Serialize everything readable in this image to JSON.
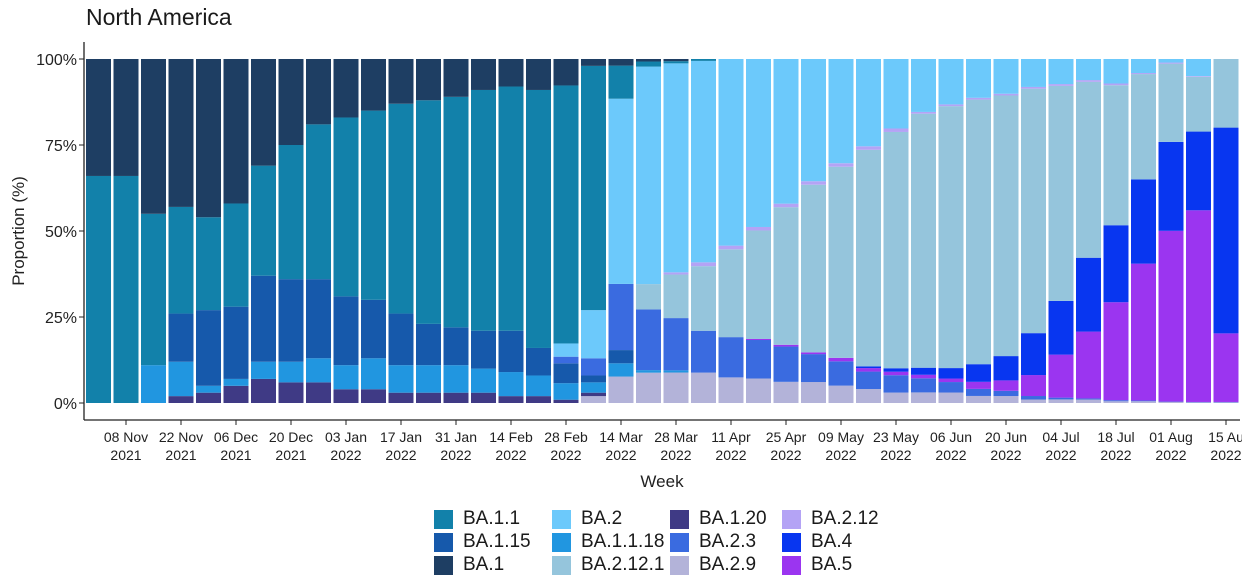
{
  "chart_data": {
    "type": "bar",
    "stacked": true,
    "title": "North America",
    "xlabel": "Week",
    "ylabel": "Proportion (%)",
    "ylim": [
      0,
      100
    ],
    "yticks": [
      "0%",
      "25%",
      "50%",
      "75%",
      "100%"
    ],
    "categories": [
      "01 Nov 2021",
      "08 Nov 2021",
      "15 Nov 2021",
      "22 Nov 2021",
      "29 Nov 2021",
      "06 Dec 2021",
      "13 Dec 2021",
      "20 Dec 2021",
      "27 Dec 2021",
      "03 Jan 2022",
      "10 Jan 2022",
      "17 Jan 2022",
      "24 Jan 2022",
      "31 Jan 2022",
      "07 Feb 2022",
      "14 Feb 2022",
      "21 Feb 2022",
      "28 Feb 2022",
      "07 Mar 2022",
      "14 Mar 2022",
      "21 Mar 2022",
      "28 Mar 2022",
      "04 Apr 2022",
      "11 Apr 2022",
      "18 Apr 2022",
      "25 Apr 2022",
      "02 May 2022",
      "09 May 2022",
      "16 May 2022",
      "23 May 2022",
      "30 May 2022",
      "06 Jun 2022",
      "13 Jun 2022",
      "20 Jun 2022",
      "27 Jun 2022",
      "04 Jul 2022",
      "11 Jul 2022",
      "18 Jul 2022",
      "25 Jul 2022",
      "01 Aug 2022",
      "08 Aug 2022",
      "15 Aug 2022"
    ],
    "xticks": [
      {
        "index": 1,
        "line1": "08 Nov",
        "line2": "2021"
      },
      {
        "index": 3,
        "line1": "22 Nov",
        "line2": "2021"
      },
      {
        "index": 5,
        "line1": "06 Dec",
        "line2": "2021"
      },
      {
        "index": 7,
        "line1": "20 Dec",
        "line2": "2021"
      },
      {
        "index": 9,
        "line1": "03 Jan",
        "line2": "2022"
      },
      {
        "index": 11,
        "line1": "17 Jan",
        "line2": "2022"
      },
      {
        "index": 13,
        "line1": "31 Jan",
        "line2": "2022"
      },
      {
        "index": 15,
        "line1": "14 Feb",
        "line2": "2022"
      },
      {
        "index": 17,
        "line1": "28 Feb",
        "line2": "2022"
      },
      {
        "index": 19,
        "line1": "14 Mar",
        "line2": "2022"
      },
      {
        "index": 21,
        "line1": "28 Mar",
        "line2": "2022"
      },
      {
        "index": 23,
        "line1": "11 Apr",
        "line2": "2022"
      },
      {
        "index": 25,
        "line1": "25 Apr",
        "line2": "2022"
      },
      {
        "index": 27,
        "line1": "09 May",
        "line2": "2022"
      },
      {
        "index": 29,
        "line1": "23 May",
        "line2": "2022"
      },
      {
        "index": 31,
        "line1": "06 Jun",
        "line2": "2022"
      },
      {
        "index": 33,
        "line1": "20 Jun",
        "line2": "2022"
      },
      {
        "index": 35,
        "line1": "04 Jul",
        "line2": "2022"
      },
      {
        "index": 37,
        "line1": "18 Jul",
        "line2": "2022"
      },
      {
        "index": 39,
        "line1": "01 Aug",
        "line2": "2022"
      },
      {
        "index": 41,
        "line1": "15 Au",
        "line2": "2022"
      }
    ],
    "series": [
      {
        "name": "BA.2.9",
        "color": "#b3b3d9",
        "values": [
          0,
          0,
          0,
          0,
          0,
          0,
          0,
          0,
          0,
          0,
          0,
          0,
          0,
          0,
          0,
          0,
          0,
          0,
          2,
          4,
          6,
          7,
          8,
          7,
          7,
          6,
          6,
          5,
          4,
          3,
          3,
          3,
          2,
          2,
          1,
          1,
          1,
          0.5,
          0.5,
          0.3,
          0.2,
          0.2
        ]
      },
      {
        "name": "BA.1.20",
        "color": "#3f3a85",
        "values": [
          0,
          0,
          0,
          2,
          3,
          5,
          7,
          6,
          6,
          4,
          4,
          3,
          3,
          3,
          3,
          2,
          2,
          1,
          1,
          0,
          0,
          0,
          0,
          0,
          0,
          0,
          0,
          0,
          0,
          0,
          0,
          0,
          0,
          0,
          0,
          0,
          0,
          0,
          0,
          0,
          0,
          0
        ]
      },
      {
        "name": "BA.1.1.18",
        "color": "#2196e0",
        "values": [
          0,
          0,
          11,
          10,
          2,
          2,
          5,
          6,
          7,
          7,
          9,
          8,
          8,
          8,
          7,
          7,
          6,
          5,
          3,
          2,
          0.5,
          0.5,
          0,
          0,
          0,
          0,
          0,
          0,
          0,
          0,
          0,
          0,
          0,
          0,
          0,
          0,
          0,
          0,
          0,
          0,
          0,
          0
        ]
      },
      {
        "name": "BA.1.15",
        "color": "#1659ab",
        "values": [
          0,
          0,
          0,
          14,
          22,
          21,
          25,
          24,
          23,
          20,
          17,
          15,
          12,
          11,
          11,
          12,
          8,
          6,
          2,
          2,
          0,
          0,
          0,
          0,
          0,
          0,
          0,
          0,
          0,
          0,
          0,
          0,
          0,
          0,
          0,
          0,
          0,
          0,
          0,
          0,
          0,
          0
        ]
      },
      {
        "name": "BA.2.3",
        "color": "#3a6be0",
        "values": [
          0,
          0,
          0,
          0,
          0,
          0,
          0,
          0,
          0,
          0,
          0,
          0,
          0,
          0,
          0,
          0,
          0,
          2,
          5,
          10,
          12,
          12,
          11,
          11,
          11,
          10,
          8,
          7,
          5,
          5,
          4,
          3,
          2,
          1.5,
          1,
          0.5,
          0.3,
          0.3,
          0.2,
          0.1,
          0.1,
          0.1
        ]
      },
      {
        "name": "BA.5",
        "color": "#9b35f0",
        "values": [
          0,
          0,
          0,
          0,
          0,
          0,
          0,
          0,
          0,
          0,
          0,
          0,
          0,
          0,
          0,
          0,
          0,
          0,
          0,
          0,
          0,
          0,
          0,
          0,
          0.3,
          0.5,
          0.5,
          1,
          1,
          1,
          1,
          1,
          2,
          3,
          6,
          12,
          19,
          28,
          39,
          48,
          56,
          20
        ]
      },
      {
        "name": "BA.4",
        "color": "#0836f0",
        "values": [
          0,
          0,
          0,
          0,
          0,
          0,
          0,
          0,
          0,
          0,
          0,
          0,
          0,
          0,
          0,
          0,
          0,
          0,
          0,
          0,
          0,
          0,
          0,
          0,
          0,
          0,
          0,
          0,
          0.5,
          1,
          2,
          3,
          5,
          7,
          12,
          15,
          21,
          22,
          24,
          25,
          23,
          60
        ]
      },
      {
        "name": "BA.2.12.1",
        "color": "#95c5dc",
        "values": [
          0,
          0,
          0,
          0,
          0,
          0,
          0,
          0,
          0,
          0,
          0,
          0,
          0,
          0,
          0,
          0,
          0,
          0,
          0,
          0,
          5,
          10,
          17,
          24,
          31,
          39,
          48,
          55,
          62,
          68,
          72,
          75,
          75,
          75,
          70,
          60,
          50,
          40,
          30,
          22,
          16,
          20
        ]
      },
      {
        "name": "BA.2.12",
        "color": "#b4a3f5",
        "values": [
          0,
          0,
          0,
          0,
          0,
          0,
          0,
          0,
          0,
          0,
          0,
          0,
          0,
          0,
          0,
          0,
          0,
          0,
          0,
          0,
          0,
          0.5,
          1,
          1,
          1,
          1,
          1,
          1,
          1,
          1,
          0.5,
          0.5,
          0.5,
          0.5,
          0.5,
          0.5,
          0.5,
          0.5,
          0.3,
          0.3,
          0.2,
          0
        ]
      },
      {
        "name": "BA.2",
        "color": "#6cc9fb",
        "values": [
          0,
          0,
          0,
          0,
          0,
          0,
          0,
          0,
          0,
          0,
          0,
          0,
          0,
          0,
          0,
          0,
          0,
          4,
          14,
          28,
          43,
          48,
          53,
          51,
          48,
          41,
          35,
          30,
          25,
          20,
          15,
          13,
          11,
          10,
          8,
          7,
          6,
          7,
          4,
          1,
          5,
          0
        ]
      },
      {
        "name": "BA.1.1",
        "color": "#1281aa",
        "values": [
          66,
          66,
          44,
          31,
          27,
          30,
          32,
          39,
          45,
          52,
          55,
          61,
          65,
          67,
          70,
          71,
          75,
          78,
          71,
          5,
          1,
          0.5,
          0.5,
          0,
          0,
          0,
          0,
          0,
          0,
          0,
          0,
          0,
          0,
          0,
          0,
          0,
          0,
          0,
          0,
          0,
          0,
          0
        ]
      },
      {
        "name": "BA.1",
        "color": "#1e3e63",
        "values": [
          34,
          34,
          45,
          43,
          46,
          42,
          31,
          25,
          19,
          17,
          15,
          13,
          12,
          11,
          9,
          8,
          9,
          8,
          2,
          1,
          0.5,
          0.5,
          0,
          0,
          0,
          0,
          0,
          0,
          0,
          0,
          0,
          0,
          0,
          0,
          0,
          0,
          0,
          0,
          0,
          0,
          0,
          0
        ]
      }
    ],
    "legend": {
      "placement": "bottom",
      "entries": [
        {
          "name": "BA.1.1",
          "color": "#1281aa"
        },
        {
          "name": "BA.2",
          "color": "#6cc9fb"
        },
        {
          "name": "BA.1.20",
          "color": "#3f3a85"
        },
        {
          "name": "BA.2.12",
          "color": "#b4a3f5"
        },
        {
          "name": "BA.1.15",
          "color": "#1659ab"
        },
        {
          "name": "BA.1.1.18",
          "color": "#2196e0"
        },
        {
          "name": "BA.2.3",
          "color": "#3a6be0"
        },
        {
          "name": "BA.4",
          "color": "#0836f0"
        },
        {
          "name": "BA.1",
          "color": "#1e3e63"
        },
        {
          "name": "BA.2.12.1",
          "color": "#95c5dc"
        },
        {
          "name": "BA.2.9",
          "color": "#b3b3d9"
        },
        {
          "name": "BA.5",
          "color": "#9b35f0"
        }
      ]
    }
  }
}
